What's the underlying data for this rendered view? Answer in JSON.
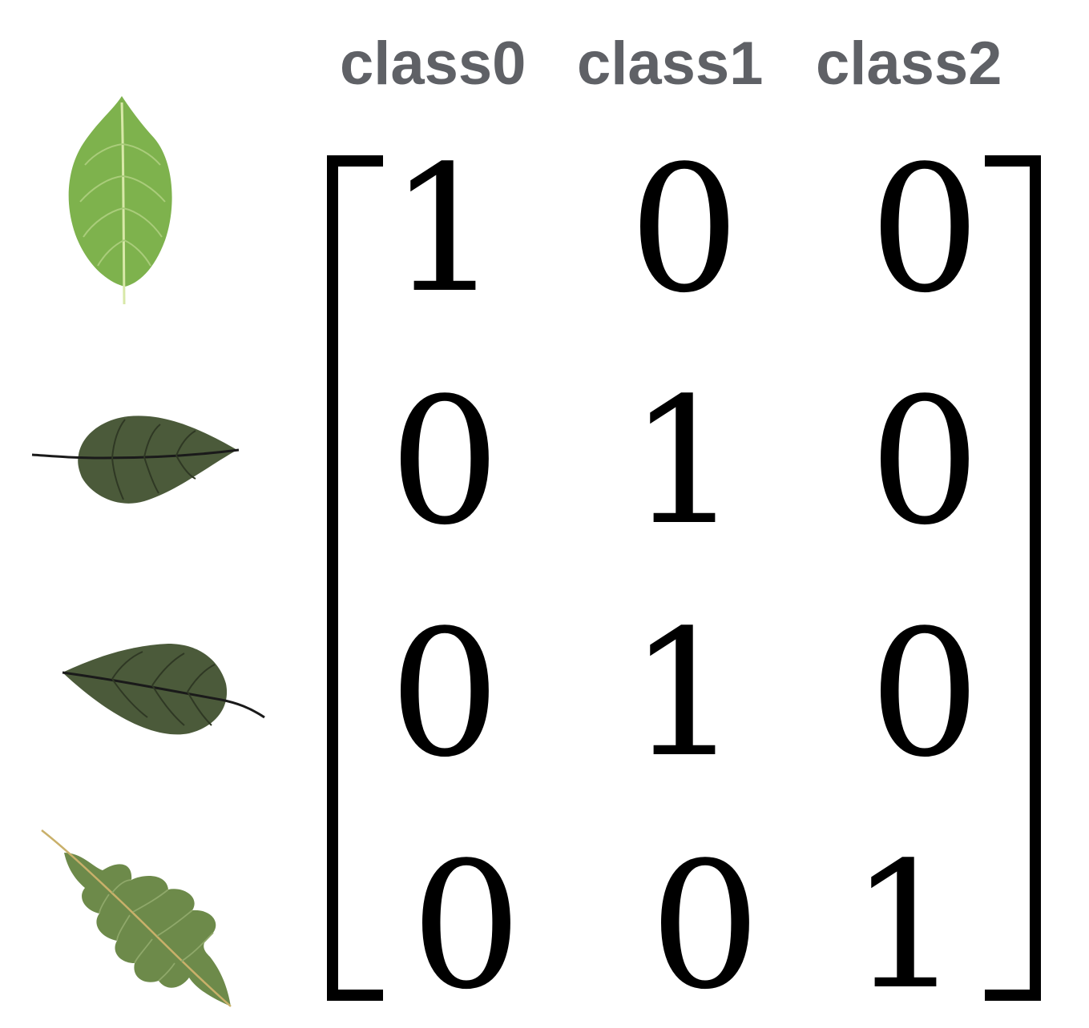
{
  "column_headers": [
    "class0",
    "class1",
    "class2"
  ],
  "matrix": [
    [
      "1",
      "0",
      "0"
    ],
    [
      "0",
      "1",
      "0"
    ],
    [
      "0",
      "1",
      "0"
    ],
    [
      "0",
      "0",
      "1"
    ]
  ],
  "colors": {
    "header_text": "#5f6166",
    "leaf_light": "#7eb24d",
    "leaf_dark": "#4b5a3a",
    "leaf_oak": "#6d8a4a"
  }
}
